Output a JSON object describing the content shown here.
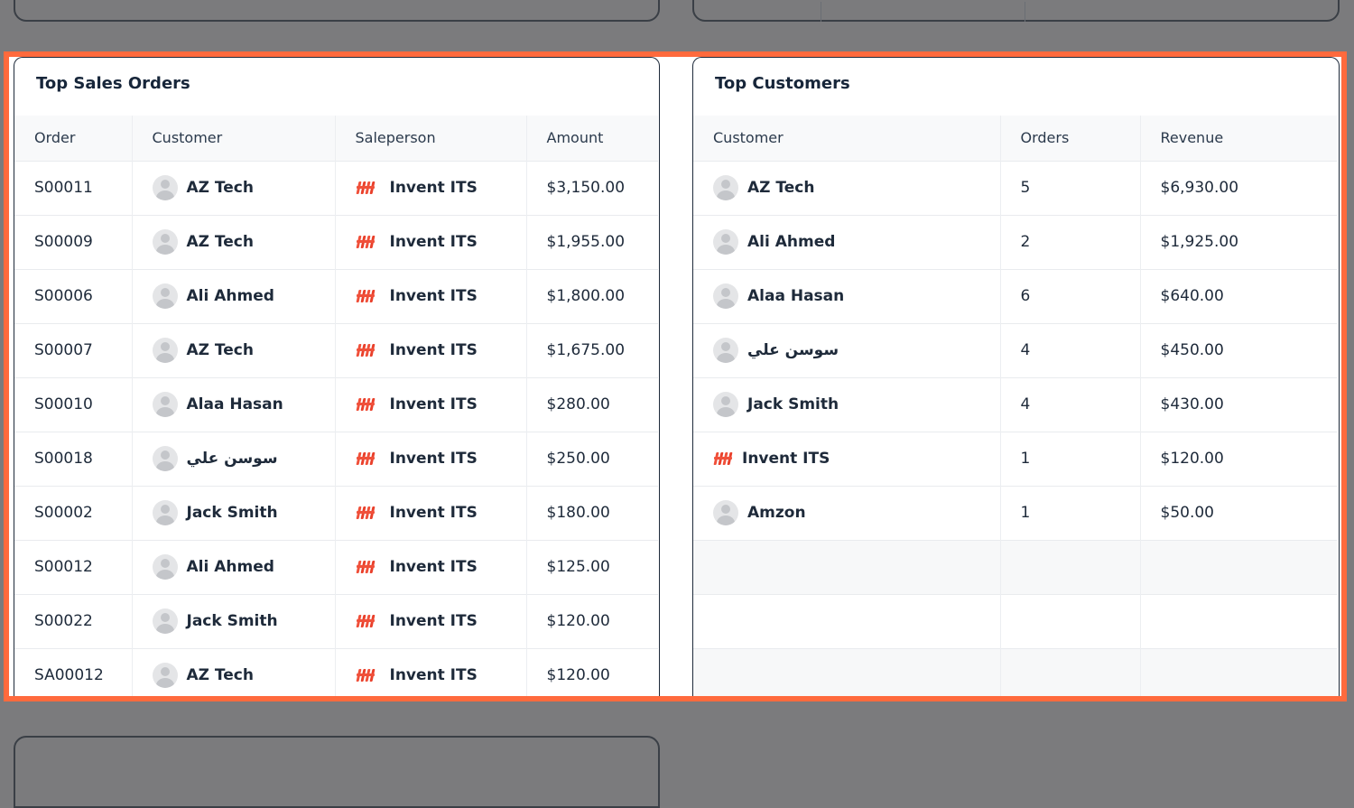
{
  "sales": {
    "title": "Top Sales Orders",
    "columns": [
      "Order",
      "Customer",
      "Saleperson",
      "Amount"
    ],
    "rows": [
      {
        "order": "S00011",
        "customer": "AZ Tech",
        "salesperson": "Invent ITS",
        "amount": "$3,150.00"
      },
      {
        "order": "S00009",
        "customer": "AZ Tech",
        "salesperson": "Invent ITS",
        "amount": "$1,955.00"
      },
      {
        "order": "S00006",
        "customer": "Ali Ahmed",
        "salesperson": "Invent ITS",
        "amount": "$1,800.00"
      },
      {
        "order": "S00007",
        "customer": "AZ Tech",
        "salesperson": "Invent ITS",
        "amount": "$1,675.00"
      },
      {
        "order": "S00010",
        "customer": "Alaa Hasan",
        "salesperson": "Invent ITS",
        "amount": "$280.00"
      },
      {
        "order": "S00018",
        "customer": "سوسن علي",
        "salesperson": "Invent ITS",
        "amount": "$250.00"
      },
      {
        "order": "S00002",
        "customer": "Jack Smith",
        "salesperson": "Invent ITS",
        "amount": "$180.00"
      },
      {
        "order": "S00012",
        "customer": "Ali Ahmed",
        "salesperson": "Invent ITS",
        "amount": "$125.00"
      },
      {
        "order": "S00022",
        "customer": "Jack Smith",
        "salesperson": "Invent ITS",
        "amount": "$120.00"
      },
      {
        "order": "SA00012",
        "customer": "AZ Tech",
        "salesperson": "Invent ITS",
        "amount": "$120.00"
      }
    ]
  },
  "customers": {
    "title": "Top Customers",
    "columns": [
      "Customer",
      "Orders",
      "Revenue"
    ],
    "rows": [
      {
        "customer": "AZ Tech",
        "orders": "5",
        "revenue": "$6,930.00",
        "icon": "avatar-icon"
      },
      {
        "customer": "Ali Ahmed",
        "orders": "2",
        "revenue": "$1,925.00",
        "icon": "avatar-icon"
      },
      {
        "customer": "Alaa Hasan",
        "orders": "6",
        "revenue": "$640.00",
        "icon": "avatar-icon"
      },
      {
        "customer": "سوسن علي",
        "orders": "4",
        "revenue": "$450.00",
        "icon": "avatar-icon"
      },
      {
        "customer": "Jack Smith",
        "orders": "4",
        "revenue": "$430.00",
        "icon": "avatar-icon"
      },
      {
        "customer": "Invent ITS",
        "orders": "1",
        "revenue": "$120.00",
        "icon": "company-logo-icon"
      },
      {
        "customer": "Amzon",
        "orders": "1",
        "revenue": "$50.00",
        "icon": "avatar-icon"
      }
    ]
  },
  "colors": {
    "highlight_border": "#ff6a3d",
    "logo_red": "#f0503a",
    "backdrop": "#7b7b7d"
  }
}
